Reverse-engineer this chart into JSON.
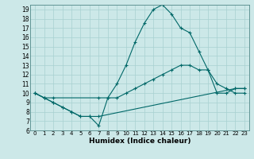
{
  "xlabel": "Humidex (Indice chaleur)",
  "bg_color": "#cce8e8",
  "line_color": "#006868",
  "grid_color": "#a8d0d0",
  "xlim": [
    -0.5,
    23.5
  ],
  "ylim": [
    6,
    19.5
  ],
  "xticks": [
    0,
    1,
    2,
    3,
    4,
    5,
    6,
    7,
    8,
    9,
    10,
    11,
    12,
    13,
    14,
    15,
    16,
    17,
    18,
    19,
    20,
    21,
    22,
    23
  ],
  "yticks": [
    6,
    7,
    8,
    9,
    10,
    11,
    12,
    13,
    14,
    15,
    16,
    17,
    18,
    19
  ],
  "line1_x": [
    0,
    1,
    2,
    3,
    4,
    5,
    6,
    7,
    8,
    9,
    10,
    11,
    12,
    13,
    14,
    15,
    16,
    17,
    18,
    19,
    20,
    21,
    22,
    23
  ],
  "line1_y": [
    10,
    9.5,
    9,
    8.5,
    8,
    7.5,
    7.5,
    6.5,
    9.5,
    11,
    13,
    15.5,
    17.5,
    19,
    19.5,
    18.5,
    17,
    16.5,
    14.5,
    12.5,
    11,
    10.5,
    10,
    10
  ],
  "line2_x": [
    0,
    1,
    2,
    3,
    4,
    5,
    6,
    7,
    22,
    23
  ],
  "line2_y": [
    10,
    9.5,
    9,
    8.5,
    8.0,
    7.5,
    7.5,
    7.5,
    10.5,
    10.5
  ],
  "line3_x": [
    0,
    1,
    2,
    7,
    8,
    9,
    10,
    11,
    12,
    13,
    14,
    15,
    16,
    17,
    18,
    19,
    20,
    21,
    22,
    23
  ],
  "line3_y": [
    10,
    9.5,
    9.5,
    9.5,
    9.5,
    9.5,
    10,
    10.5,
    11,
    11.5,
    12,
    12.5,
    13,
    13,
    12.5,
    12.5,
    10,
    10,
    10.5,
    10.5
  ]
}
